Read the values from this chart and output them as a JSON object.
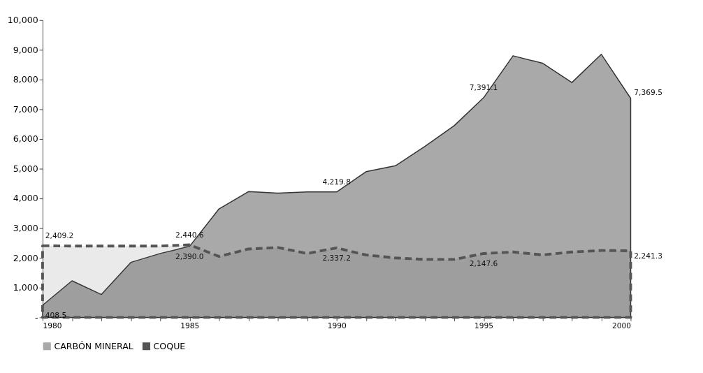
{
  "chart_data": {
    "type": "area",
    "x": [
      1980,
      1981,
      1982,
      1983,
      1984,
      1985,
      1986,
      1987,
      1988,
      1989,
      1990,
      1991,
      1992,
      1993,
      1994,
      1995,
      1996,
      1997,
      1998,
      1999,
      2000
    ],
    "series": [
      {
        "name": "CARBÓN MINERAL",
        "color": "#a9a9a9",
        "values": [
          408.5,
          1230,
          770,
          1850,
          2150,
          2390.0,
          3650,
          4230,
          4180,
          4220,
          4219.8,
          4900,
          5100,
          5750,
          6450,
          7391.1,
          8800,
          8550,
          7900,
          8850,
          7369.5
        ],
        "value_labels": [
          "408.5",
          null,
          null,
          null,
          null,
          "2,390.0",
          null,
          null,
          null,
          null,
          "4,219.8",
          null,
          null,
          null,
          null,
          "7,391.1",
          null,
          null,
          null,
          null,
          "7,369.5"
        ]
      },
      {
        "name": "COQUE",
        "color": "#555555",
        "line_style": "dashed",
        "values": [
          2409.2,
          2400,
          2400,
          2400,
          2400,
          2440.6,
          2050,
          2300,
          2350,
          2150,
          2337.2,
          2100,
          2000,
          1950,
          1950,
          2147.6,
          2200,
          2100,
          2200,
          2250,
          2241.3
        ],
        "value_labels": [
          "2,409.2",
          null,
          null,
          null,
          null,
          "2,440.6",
          null,
          null,
          null,
          null,
          "2,337.2",
          null,
          null,
          null,
          null,
          "2,147.6",
          null,
          null,
          null,
          null,
          "2,241.3"
        ]
      }
    ],
    "xlim": [
      1980,
      2000
    ],
    "xticks": [
      1980,
      {
        "value": 1981,
        "label": null
      },
      {
        "value": 1982,
        "label": null
      },
      {
        "value": 1983,
        "label": null
      },
      {
        "value": 1984,
        "label": null
      },
      1985,
      {
        "value": 1986,
        "label": null
      },
      {
        "value": 1987,
        "label": null
      },
      {
        "value": 1988,
        "label": null
      },
      {
        "value": 1989,
        "label": null
      },
      1990,
      {
        "value": 1991,
        "label": null
      },
      {
        "value": 1992,
        "label": null
      },
      {
        "value": 1993,
        "label": null
      },
      {
        "value": 1994,
        "label": null
      },
      1995,
      {
        "value": 1996,
        "label": null
      },
      {
        "value": 1997,
        "label": null
      },
      {
        "value": 1998,
        "label": null
      },
      {
        "value": 1999,
        "label": null
      },
      2000
    ],
    "ylim": [
      0,
      10000
    ],
    "yticks": [
      {
        "value": 0,
        "label": "-"
      },
      {
        "value": 1000,
        "label": "1,000"
      },
      {
        "value": 2000,
        "label": "2,000"
      },
      {
        "value": 3000,
        "label": "3,000"
      },
      {
        "value": 4000,
        "label": "4,000"
      },
      {
        "value": 5000,
        "label": "5,000"
      },
      {
        "value": 6000,
        "label": "6,000"
      },
      {
        "value": 7000,
        "label": "7,000"
      },
      {
        "value": 8000,
        "label": "8,000"
      },
      {
        "value": 9000,
        "label": "9,000"
      },
      {
        "value": 10000,
        "label": "10,000"
      }
    ],
    "grid": false,
    "legend": "bottom"
  }
}
